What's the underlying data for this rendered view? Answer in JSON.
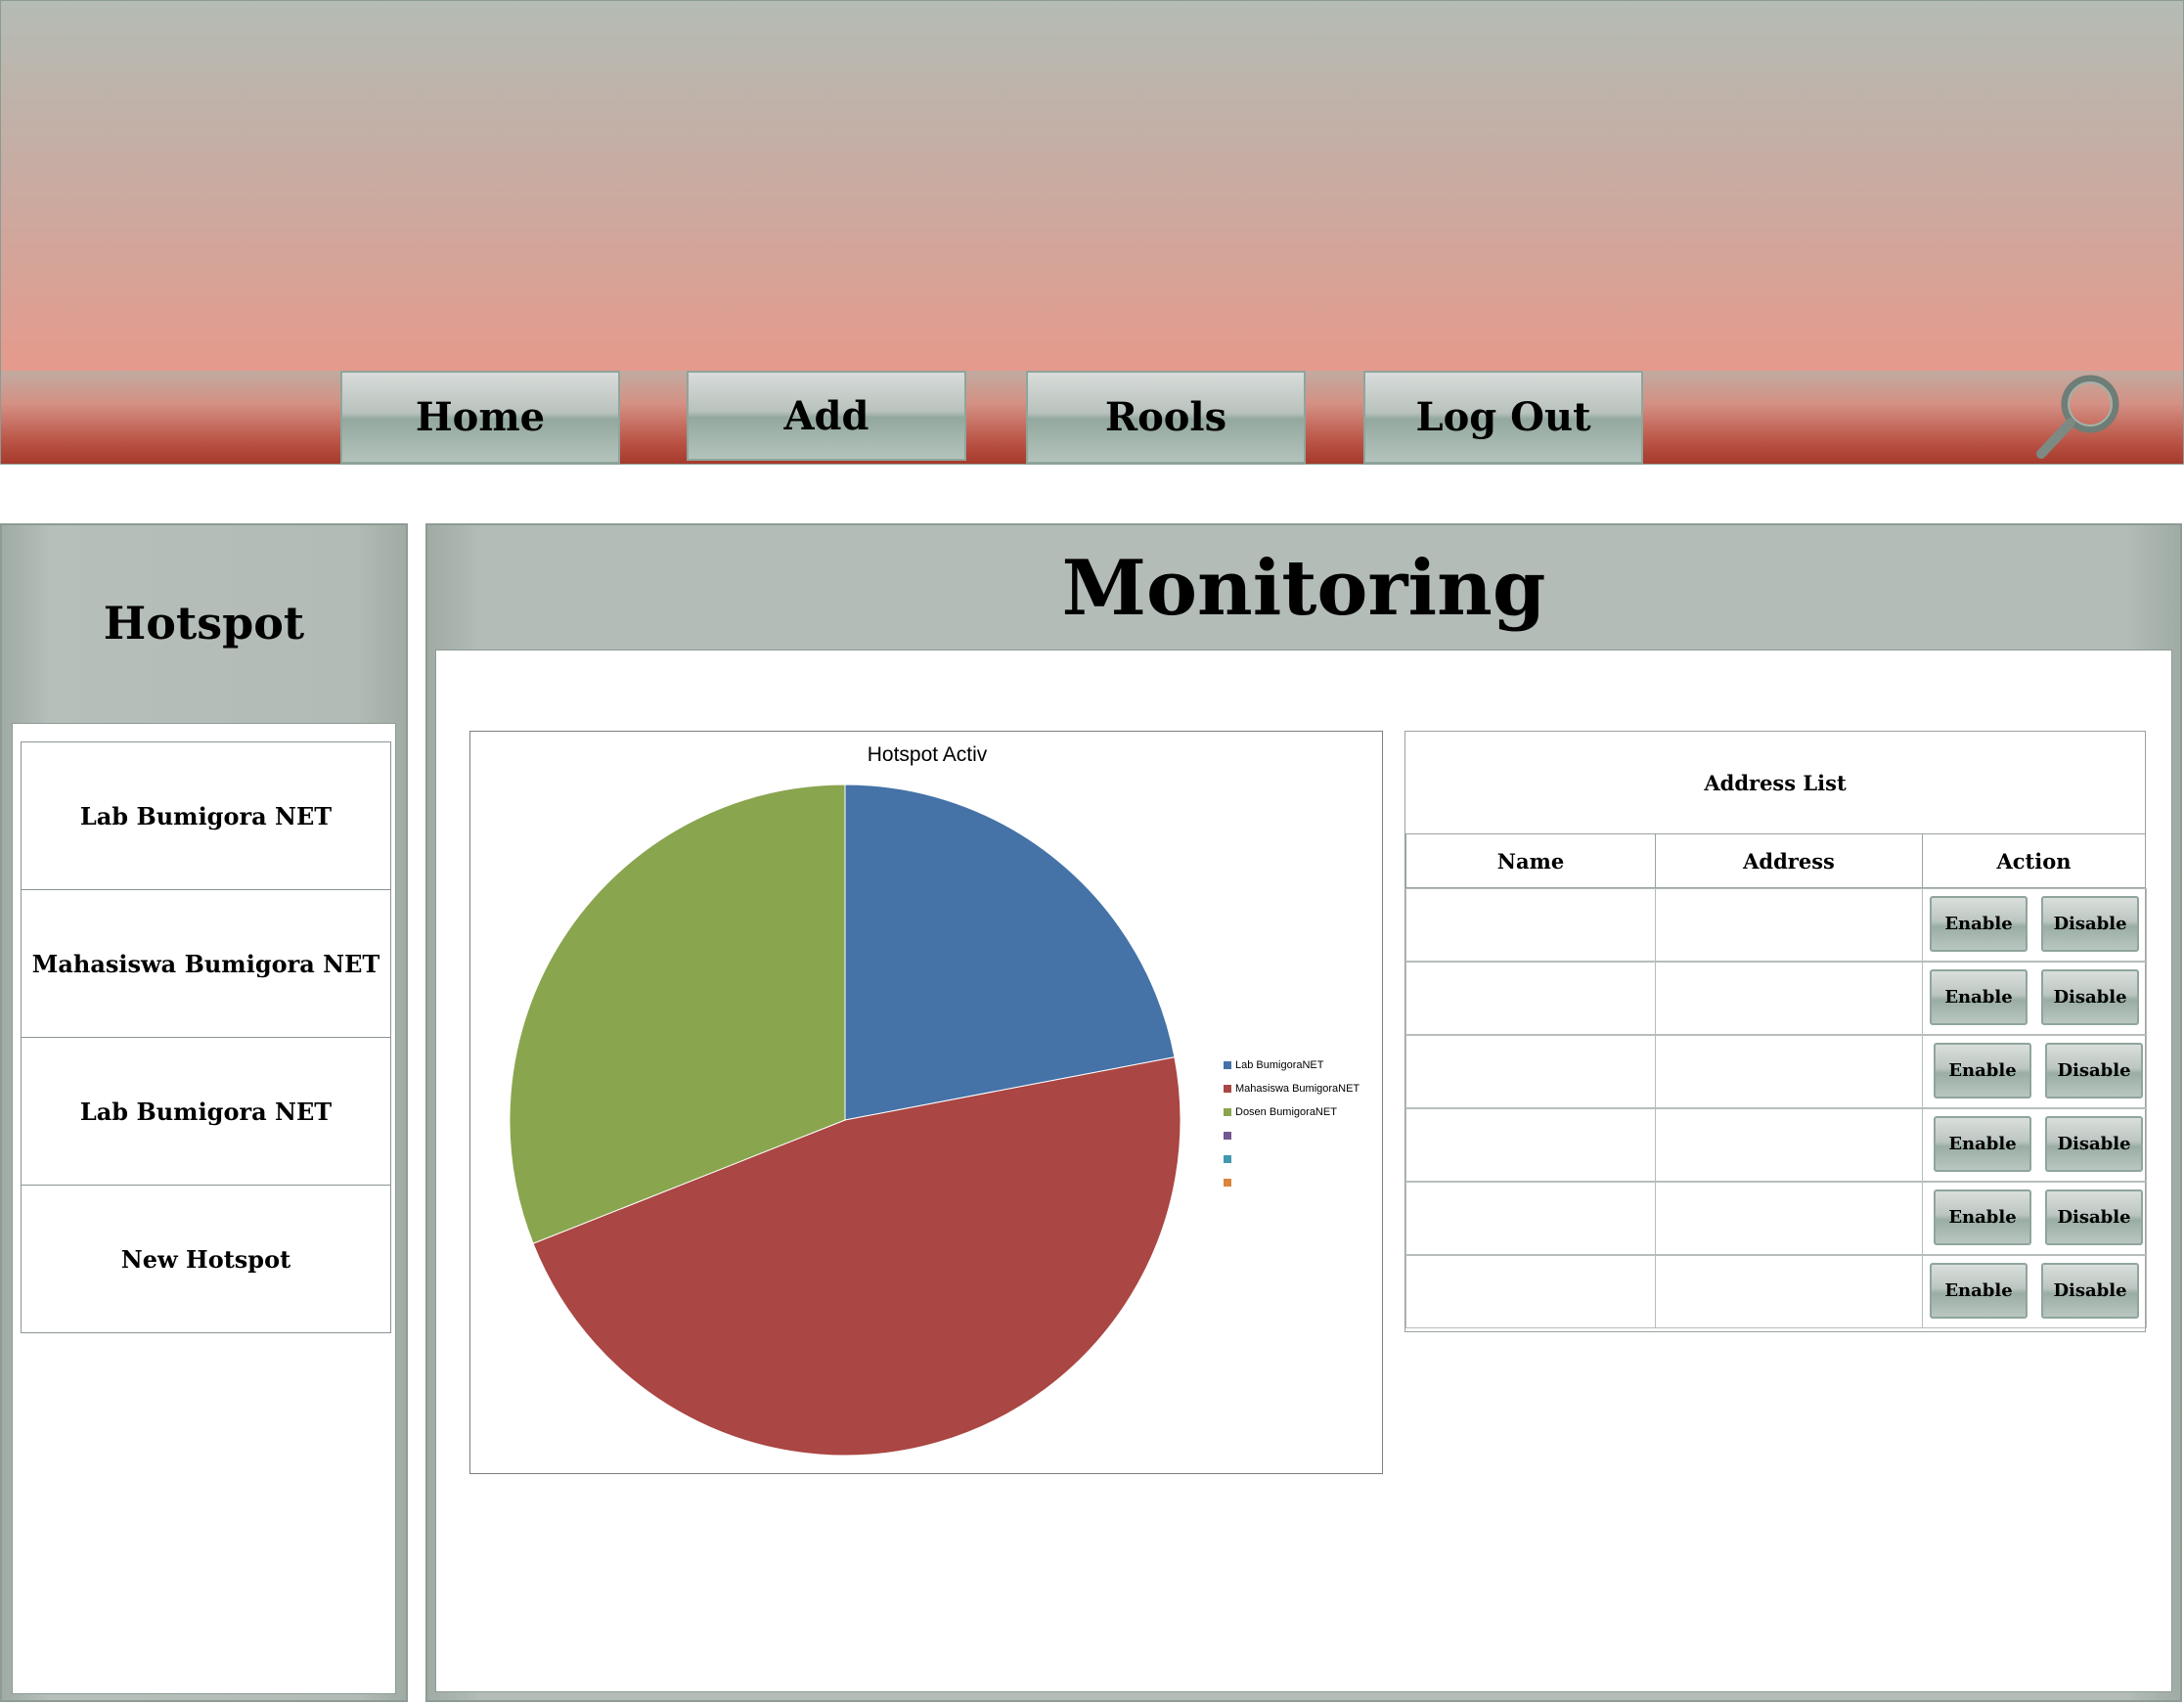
{
  "nav": {
    "items": [
      {
        "label": "Home"
      },
      {
        "label": "Add"
      },
      {
        "label": "Rools"
      },
      {
        "label": "Log Out"
      }
    ],
    "search_icon": "search-icon"
  },
  "sidebar": {
    "title": "Hotspot",
    "items": [
      {
        "label": "Lab Bumigora NET"
      },
      {
        "label": "Mahasiswa Bumigora NET"
      },
      {
        "label": "Lab Bumigora NET"
      },
      {
        "label": "New Hotspot"
      }
    ]
  },
  "main": {
    "title": "Monitoring"
  },
  "chart_data": {
    "type": "pie",
    "title": "Hotspot Activ",
    "legend_position": "right",
    "slices": [
      {
        "label": "Lab BumigoraNET",
        "value": 22,
        "color": "#4572a7"
      },
      {
        "label": "Mahasiswa BumigoraNET",
        "value": 47,
        "color": "#aa4643"
      },
      {
        "label": "Dosen BumigoraNET",
        "value": 31,
        "color": "#89a54e"
      }
    ],
    "legend": [
      {
        "label": "Lab BumigoraNET",
        "color": "#4572a7"
      },
      {
        "label": "Mahasiswa BumigoraNET",
        "color": "#aa4643"
      },
      {
        "label": "Dosen BumigoraNET",
        "color": "#89a54e"
      },
      {
        "label": "",
        "color": "#71588f"
      },
      {
        "label": "",
        "color": "#4198af"
      },
      {
        "label": "",
        "color": "#db843d"
      }
    ]
  },
  "address_list": {
    "title": "Address List",
    "columns": [
      "Name",
      "Address",
      "Action"
    ],
    "rows": [
      {
        "name": "",
        "address": "",
        "enable_label": "Enable",
        "disable_label": "Disable"
      },
      {
        "name": "",
        "address": "",
        "enable_label": "Enable",
        "disable_label": "Disable"
      },
      {
        "name": "",
        "address": "",
        "enable_label": "Enable",
        "disable_label": "Disable"
      },
      {
        "name": "",
        "address": "",
        "enable_label": "Enable",
        "disable_label": "Disable"
      },
      {
        "name": "",
        "address": "",
        "enable_label": "Enable",
        "disable_label": "Disable"
      },
      {
        "name": "",
        "address": "",
        "enable_label": "Enable",
        "disable_label": "Disable"
      }
    ]
  }
}
